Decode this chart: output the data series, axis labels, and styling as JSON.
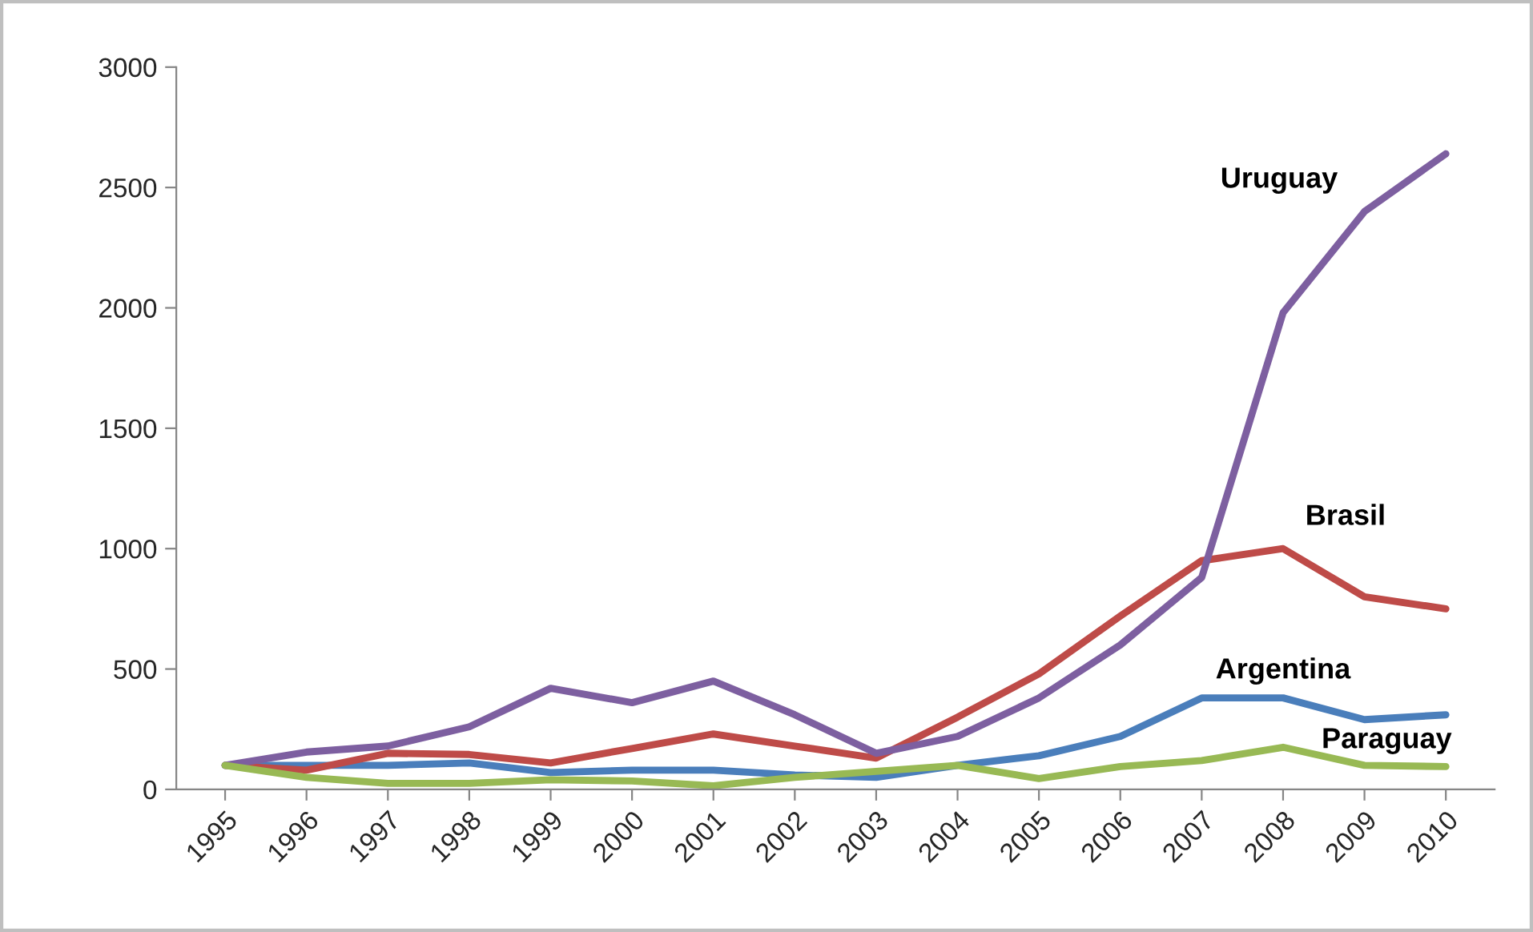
{
  "chart_data": {
    "type": "line",
    "categories": [
      "1995",
      "1996",
      "1997",
      "1998",
      "1999",
      "2000",
      "2001",
      "2002",
      "2003",
      "2004",
      "2005",
      "2006",
      "2007",
      "2008",
      "2009",
      "2010"
    ],
    "series": [
      {
        "name": "Argentina",
        "color": "#4a7ebb",
        "values": [
          100,
          100,
          100,
          110,
          70,
          80,
          80,
          60,
          50,
          100,
          140,
          220,
          380,
          380,
          290,
          310
        ]
      },
      {
        "name": "Brasil",
        "color": "#be4b48",
        "values": [
          100,
          80,
          150,
          145,
          110,
          170,
          230,
          180,
          130,
          300,
          480,
          720,
          950,
          1000,
          800,
          750
        ]
      },
      {
        "name": "Uruguay",
        "color": "#7d5fa0",
        "values": [
          100,
          155,
          180,
          260,
          420,
          360,
          450,
          310,
          150,
          220,
          380,
          600,
          880,
          1980,
          2400,
          2640
        ]
      },
      {
        "name": "Paraguay",
        "color": "#98b954",
        "values": [
          100,
          50,
          25,
          25,
          40,
          35,
          15,
          50,
          75,
          100,
          45,
          95,
          120,
          175,
          100,
          95
        ]
      }
    ],
    "ylim": [
      0,
      3000
    ],
    "yticks": [
      0,
      500,
      1000,
      1500,
      2000,
      2500,
      3000
    ],
    "grid": false,
    "legend": false,
    "marker": "none",
    "line_style": "solid"
  }
}
